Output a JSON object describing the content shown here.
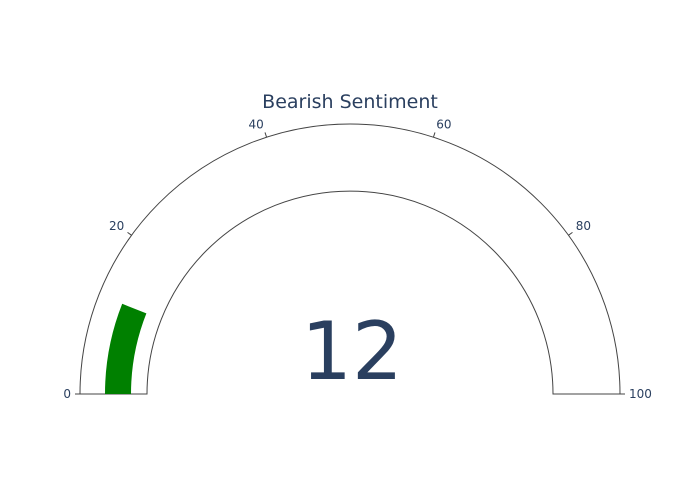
{
  "chart_data": {
    "type": "gauge",
    "title": "Bearish Sentiment",
    "value": 12,
    "display_value": "12",
    "range": [
      0,
      100
    ],
    "ticks": [
      0,
      20,
      40,
      60,
      80,
      100
    ],
    "tick_labels": [
      "0",
      "20",
      "40",
      "60",
      "80",
      "100"
    ],
    "colors": {
      "bar": "#008000",
      "text": "#2a3f5f",
      "outline": "#444444",
      "background": "#ffffff"
    }
  }
}
